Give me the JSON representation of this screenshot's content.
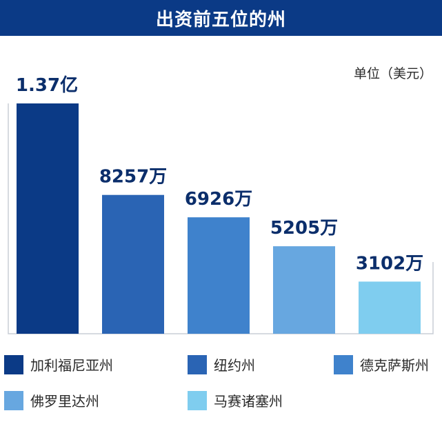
{
  "chart_data": {
    "type": "bar",
    "title": "出资前五位的州",
    "unit": "单位（美元）",
    "categories": [
      "加利福尼亚州",
      "纽约州",
      "德克萨斯州",
      "佛罗里达州",
      "马赛诸塞州"
    ],
    "values": [
      137000000,
      82570000,
      69260000,
      52050000,
      31020000
    ],
    "data_labels": [
      "1.37亿",
      "8257万",
      "6926万",
      "5205万",
      "3102万"
    ],
    "colors": [
      "#0b3a86",
      "#2a64b4",
      "#3f82cc",
      "#67a7e0",
      "#7fcdef"
    ],
    "xlabel": "",
    "ylabel": "",
    "legend_position": "bottom",
    "grid": false
  }
}
